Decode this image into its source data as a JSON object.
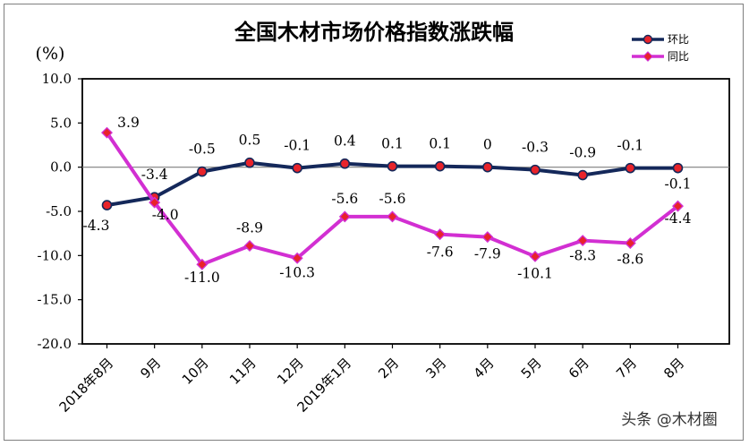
{
  "chart_data": {
    "type": "line",
    "title": "全国木材市场价格指数涨跌幅",
    "ylabel": "(%)",
    "xlabel": "",
    "ylim": [
      -20.0,
      10.0
    ],
    "yticks": [
      "10.0",
      "5.0",
      "0.0",
      "-5.0",
      "-10.0",
      "-15.0",
      "-20.0"
    ],
    "ytick_values": [
      10,
      5,
      0,
      -5,
      -10,
      -15,
      -20
    ],
    "categories": [
      "2018年8月",
      "9月",
      "10月",
      "11月",
      "12月",
      "2019年1月",
      "2月",
      "3月",
      "4月",
      "5月",
      "6月",
      "7月",
      "8月"
    ],
    "series": [
      {
        "name": "环比",
        "color": "#14285a",
        "marker_color": "#e8232a",
        "values": [
          -4.3,
          -3.4,
          -0.5,
          0.5,
          -0.1,
          0.4,
          0.1,
          0.1,
          0,
          -0.3,
          -0.9,
          -0.1,
          -0.1
        ],
        "labels": [
          "-4.3",
          "-3.4",
          "-0.5",
          "0.5",
          "-0.1",
          "0.4",
          "0.1",
          "0.1",
          "0",
          "-0.3",
          "-0.9",
          "-0.1",
          "-0.1"
        ]
      },
      {
        "name": "同比",
        "color": "#d22fd2",
        "marker_color": "#e8232a",
        "values": [
          3.9,
          -4.0,
          -11.0,
          -8.9,
          -10.3,
          -5.6,
          -5.6,
          -7.6,
          -7.9,
          -10.1,
          -8.3,
          -8.6,
          -4.4
        ],
        "labels": [
          "3.9",
          "-4.0",
          "-11.0",
          "-8.9",
          "-10.3",
          "-5.6",
          "-5.6",
          "-7.6",
          "-7.9",
          "-10.1",
          "-8.3",
          "-8.6",
          "-4.4"
        ]
      }
    ],
    "legend_position": "top-right",
    "grid": false
  },
  "watermark": "头条 @木材圈"
}
